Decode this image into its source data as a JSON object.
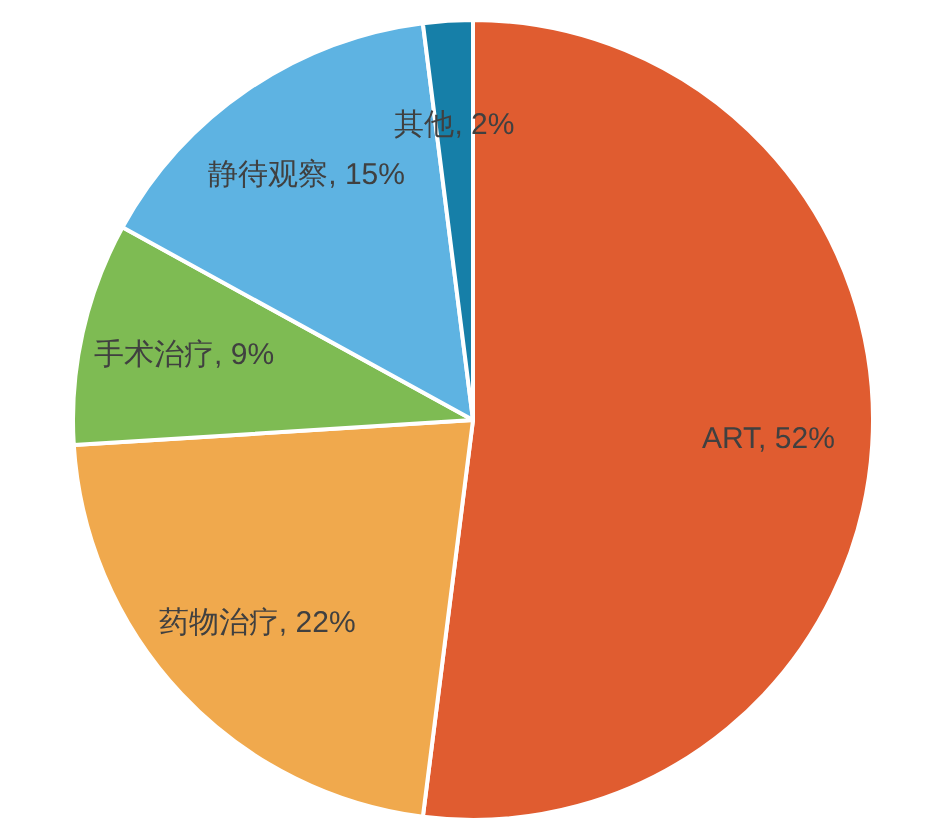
{
  "chart_data": {
    "type": "pie",
    "categories": [
      "ART",
      "药物治疗",
      "手术治疗",
      "静待观察",
      "其他"
    ],
    "values": [
      52,
      22,
      9,
      15,
      2
    ],
    "colors": [
      "#e05c30",
      "#f0a94d",
      "#7ebb53",
      "#5eb3e2",
      "#167fa8"
    ],
    "value_labels": [
      "52%",
      "22%",
      "9%",
      "15%",
      "2%"
    ]
  }
}
